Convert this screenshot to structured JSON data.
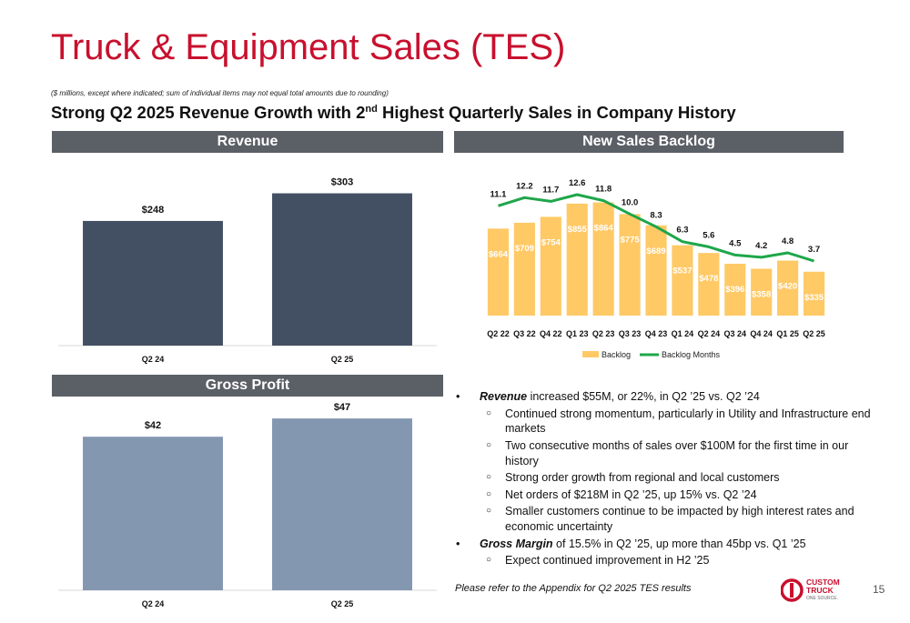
{
  "page": {
    "title": "Truck & Equipment Sales (TES)",
    "note": "($ millions, except where indicated; sum of individual items may not equal total amounts due to rounding)",
    "subtitle_pre": "Strong Q2 2025 Revenue Growth with 2",
    "subtitle_sup": "nd",
    "subtitle_post": " Highest Quarterly Sales in Company History",
    "page_number": "15",
    "footnote": "Please refer to the Appendix for Q2 2025 TES results"
  },
  "panels": {
    "revenue": "Revenue",
    "backlog": "New Sales Backlog",
    "gross_profit": "Gross Profit"
  },
  "colors": {
    "revenue_bar": "#435063",
    "gross_bar": "#8497b0",
    "backlog_bar": "#ffc966",
    "backlog_line": "#1fa64a",
    "brand_red": "#c8102e",
    "header_gray": "#5b5f66"
  },
  "logo": {
    "line1": "CUSTOM",
    "line2": "TRUCK",
    "line3": "ONE SOURCE."
  },
  "bullets": [
    {
      "level": 1,
      "bold": "Revenue",
      "text": " increased $55M, or 22%, in Q2 ’25 vs. Q2 ’24"
    },
    {
      "level": 2,
      "text": "Continued strong momentum, particularly in Utility and Infrastructure end markets"
    },
    {
      "level": 2,
      "text": "Two consecutive months of sales over $100M for the first time in our history"
    },
    {
      "level": 2,
      "text": "Strong order growth from regional and local customers"
    },
    {
      "level": 2,
      "text": "Net orders of $218M in Q2 ’25, up 15% vs. Q2 ’24"
    },
    {
      "level": 2,
      "text": "Smaller customers continue to be impacted by high interest rates and economic uncertainty"
    },
    {
      "level": 1,
      "bold": "Gross Margin",
      "text": " of 15.5% in Q2 ’25, up more than 45bp vs. Q1 ’25"
    },
    {
      "level": 2,
      "text": "Expect continued improvement in H2 ’25"
    }
  ],
  "chart_data": [
    {
      "type": "bar",
      "categories": [
        "Q2 24",
        "Q2 25"
      ],
      "values": [
        248,
        303
      ],
      "labels": [
        "$248",
        "$303"
      ],
      "ylim": [
        0,
        380
      ]
    },
    {
      "type": "bar",
      "categories": [
        "Q2 24",
        "Q2 25"
      ],
      "values": [
        42,
        47
      ],
      "labels": [
        "$42",
        "$47"
      ],
      "ylim": [
        0,
        52
      ]
    },
    {
      "type": "bar+line",
      "categories": [
        "Q2 22",
        "Q3 22",
        "Q4 22",
        "Q1 23",
        "Q2 23",
        "Q3 23",
        "Q4 23",
        "Q1 24",
        "Q2 24",
        "Q3 24",
        "Q4 24",
        "Q1 25",
        "Q2 25"
      ],
      "series": [
        {
          "name": "Backlog",
          "type": "bar",
          "values": [
            664,
            709,
            754,
            855,
            864,
            775,
            689,
            537,
            478,
            396,
            358,
            420,
            335
          ],
          "labels": [
            "$664",
            "$709",
            "$754",
            "$855",
            "$864",
            "$775",
            "$689",
            "$537",
            "$478",
            "$396",
            "$358",
            "$420",
            "$335"
          ]
        },
        {
          "name": "Backlog Months",
          "type": "line",
          "values": [
            11.1,
            12.2,
            11.7,
            12.6,
            11.8,
            10.0,
            8.3,
            6.3,
            5.6,
            4.5,
            4.2,
            4.8,
            3.7
          ],
          "labels": [
            "11.1",
            "12.2",
            "11.7",
            "12.6",
            "11.8",
            "10.0",
            "8.3",
            "6.3",
            "5.6",
            "4.5",
            "4.2",
            "4.8",
            "3.7"
          ]
        }
      ],
      "legend": "bottom"
    }
  ]
}
